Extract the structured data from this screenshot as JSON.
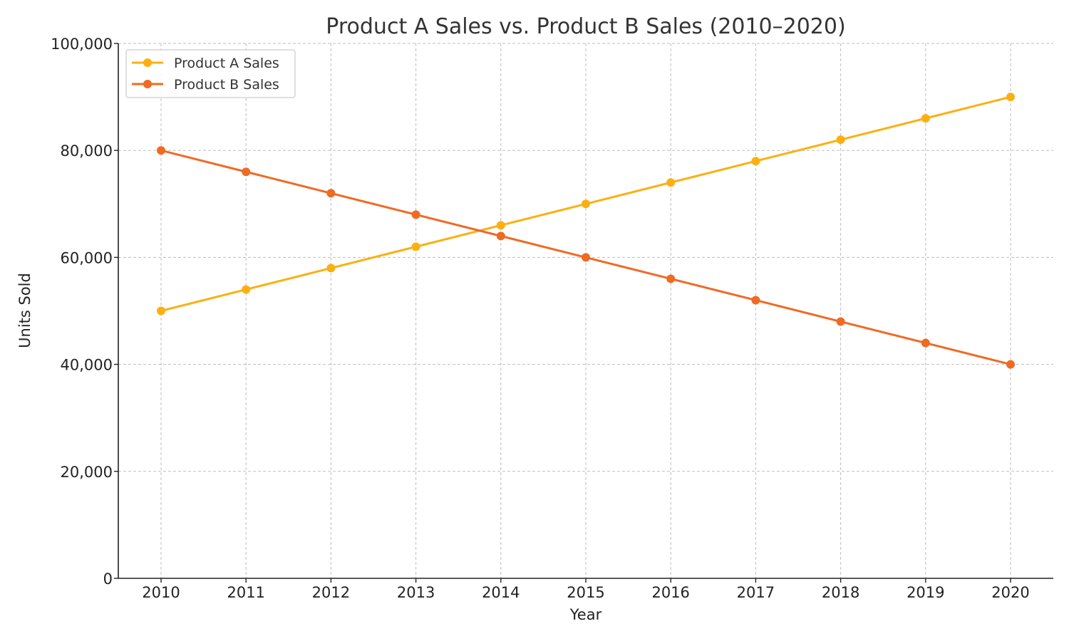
{
  "chart_data": {
    "type": "line",
    "title": "Product A Sales vs. Product B Sales (2010–2020)",
    "xlabel": "Year",
    "ylabel": "Units Sold",
    "x": [
      "2010",
      "2011",
      "2012",
      "2013",
      "2014",
      "2015",
      "2016",
      "2017",
      "2018",
      "2019",
      "2020"
    ],
    "ylim": [
      0,
      100000
    ],
    "yticks": [
      {
        "value": 0,
        "label": "0"
      },
      {
        "value": 20000,
        "label": "20,000"
      },
      {
        "value": 40000,
        "label": "40,000"
      },
      {
        "value": 60000,
        "label": "60,000"
      },
      {
        "value": 80000,
        "label": "80,000"
      },
      {
        "value": 100000,
        "label": "100,000"
      }
    ],
    "grid": true,
    "legend_position": "top-left",
    "series": [
      {
        "name": "Product A Sales",
        "color": "#FBB012",
        "values": [
          50000,
          54000,
          58000,
          62000,
          66000,
          70000,
          74000,
          78000,
          82000,
          86000,
          90000
        ]
      },
      {
        "name": "Product B Sales",
        "color": "#EF6A24",
        "values": [
          80000,
          76000,
          72000,
          68000,
          64000,
          60000,
          56000,
          52000,
          48000,
          44000,
          40000
        ]
      }
    ]
  }
}
